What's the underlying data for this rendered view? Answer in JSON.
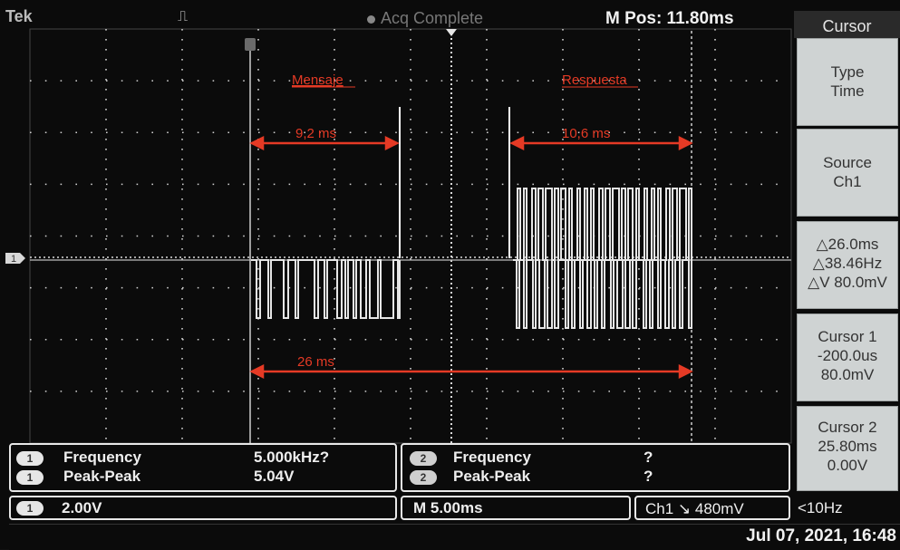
{
  "topbar": {
    "brand": "Tek",
    "trigger_icon": "pulse-icon",
    "acq_status": "Acq Complete",
    "m_pos": "M Pos: 11.80ms"
  },
  "annotations": {
    "message_label": "Mensaje",
    "response_label": "Respuesta",
    "message_duration": "9,2 ms",
    "response_duration": "10,6 ms",
    "total_duration": "26 ms"
  },
  "channel_marker": "1",
  "menu": {
    "title": "Cursor",
    "buttons": [
      {
        "lines": [
          "Type",
          "Time"
        ]
      },
      {
        "lines": [
          "Source",
          "Ch1"
        ]
      },
      {
        "lines": [
          "△26.0ms",
          "△38.46Hz",
          "△V 80.0mV"
        ]
      },
      {
        "lines": [
          "Cursor 1",
          "-200.0us",
          "80.0mV"
        ]
      },
      {
        "lines": [
          "Cursor 2",
          "25.80ms",
          "0.00V"
        ]
      }
    ]
  },
  "measurements": {
    "ch1": [
      {
        "channel": "1",
        "label": "Frequency",
        "value": "5.000kHz?"
      },
      {
        "channel": "1",
        "label": "Peak-Peak",
        "value": "5.04V"
      }
    ],
    "ch2": [
      {
        "channel": "2",
        "label": "Frequency",
        "value": "?"
      },
      {
        "channel": "2",
        "label": "Peak-Peak",
        "value": "?"
      }
    ]
  },
  "bottom": {
    "ch1_channel": "1",
    "ch1_scale": "2.00V",
    "timebase": "M 5.00ms",
    "trigger": "Ch1 ↘ 480mV",
    "trigger_freq": "<10Hz",
    "datetime": "Jul 07, 2021, 16:48"
  },
  "colors": {
    "annotation": "#e53a25",
    "grid": "#d9d9d9",
    "trace": "#e6e6e6"
  }
}
